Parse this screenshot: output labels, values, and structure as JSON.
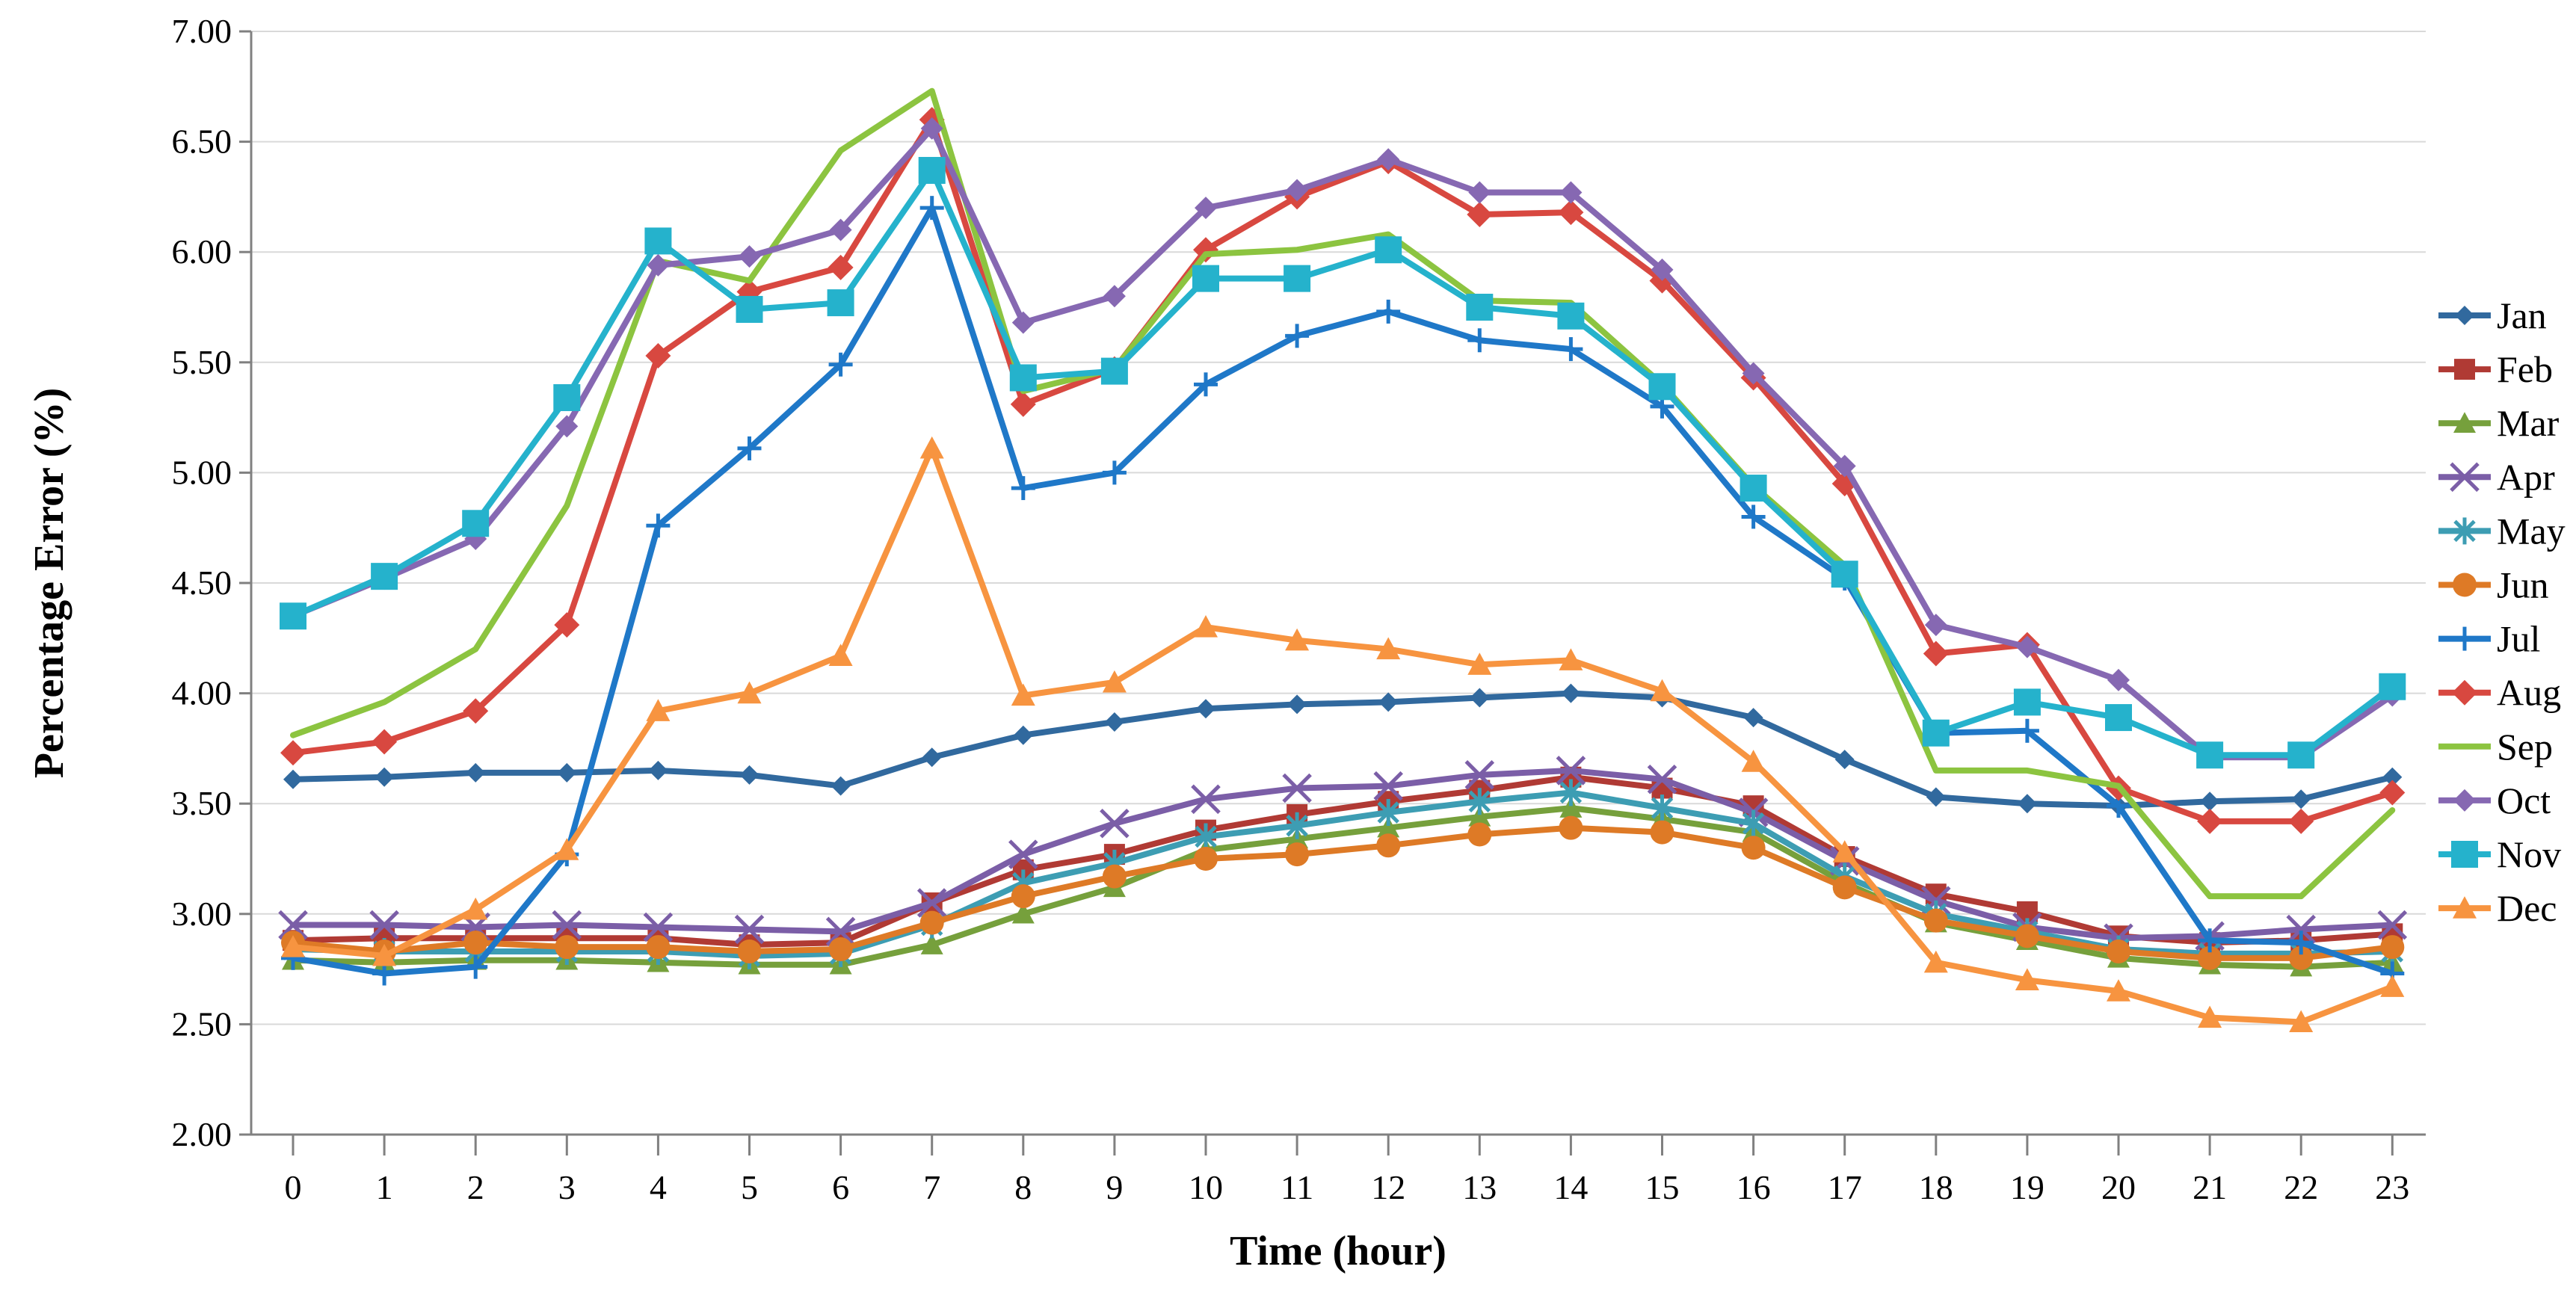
{
  "chart_data": {
    "type": "line",
    "title": "",
    "xlabel": "Time (hour)",
    "ylabel": "Percentage Error (%)",
    "x": [
      0,
      1,
      2,
      3,
      4,
      5,
      6,
      7,
      8,
      9,
      10,
      11,
      12,
      13,
      14,
      15,
      16,
      17,
      18,
      19,
      20,
      21,
      22,
      23
    ],
    "ylim": [
      2.0,
      7.0
    ],
    "ytick_step": 0.5,
    "ytick_decimals": 2,
    "grid": "horizontal",
    "legend_position": "right",
    "axis_color": "#808080",
    "grid_color": "#D9D9D9",
    "series": [
      {
        "name": "Jan",
        "color": "#31699E",
        "marker": "diamond",
        "marker_size": 13,
        "values": [
          3.61,
          3.62,
          3.64,
          3.64,
          3.65,
          3.63,
          3.58,
          3.71,
          3.81,
          3.87,
          3.93,
          3.95,
          3.96,
          3.98,
          4.0,
          3.98,
          3.89,
          3.7,
          3.53,
          3.5,
          3.49,
          3.51,
          3.52,
          3.62
        ]
      },
      {
        "name": "Feb",
        "color": "#B03A34",
        "marker": "square",
        "marker_size": 14,
        "values": [
          2.88,
          2.89,
          2.89,
          2.89,
          2.89,
          2.86,
          2.87,
          3.05,
          3.2,
          3.27,
          3.38,
          3.45,
          3.51,
          3.56,
          3.62,
          3.57,
          3.49,
          3.26,
          3.09,
          3.01,
          2.9,
          2.87,
          2.88,
          2.91
        ]
      },
      {
        "name": "Mar",
        "color": "#76A03C",
        "marker": "triangle",
        "marker_size": 15,
        "values": [
          2.79,
          2.78,
          2.79,
          2.79,
          2.78,
          2.77,
          2.77,
          2.86,
          3.0,
          3.12,
          3.29,
          3.34,
          3.39,
          3.44,
          3.48,
          3.43,
          3.37,
          3.14,
          2.96,
          2.88,
          2.8,
          2.77,
          2.76,
          2.78
        ]
      },
      {
        "name": "Apr",
        "color": "#7B5EA7",
        "marker": "x",
        "marker_size": 18,
        "values": [
          2.95,
          2.95,
          2.94,
          2.95,
          2.94,
          2.93,
          2.92,
          3.05,
          3.27,
          3.41,
          3.52,
          3.57,
          3.58,
          3.63,
          3.65,
          3.61,
          3.46,
          3.24,
          3.06,
          2.94,
          2.89,
          2.9,
          2.93,
          2.95
        ]
      },
      {
        "name": "May",
        "color": "#3D9DB3",
        "marker": "asterisk",
        "marker_size": 18,
        "values": [
          2.84,
          2.83,
          2.83,
          2.83,
          2.83,
          2.81,
          2.82,
          2.95,
          3.14,
          3.23,
          3.35,
          3.4,
          3.46,
          3.51,
          3.55,
          3.48,
          3.41,
          3.17,
          3.0,
          2.92,
          2.84,
          2.82,
          2.82,
          2.83
        ]
      },
      {
        "name": "Jun",
        "color": "#DE7A26",
        "marker": "circle",
        "marker_size": 16,
        "values": [
          2.87,
          2.83,
          2.87,
          2.85,
          2.85,
          2.83,
          2.84,
          2.96,
          3.08,
          3.17,
          3.25,
          3.27,
          3.31,
          3.36,
          3.39,
          3.37,
          3.3,
          3.12,
          2.97,
          2.9,
          2.83,
          2.8,
          2.8,
          2.85
        ]
      },
      {
        "name": "Jul",
        "color": "#1F78C8",
        "marker": "plus",
        "marker_size": 16,
        "values": [
          2.8,
          2.73,
          2.76,
          3.27,
          4.76,
          5.11,
          5.49,
          6.2,
          4.93,
          5.0,
          5.4,
          5.62,
          5.73,
          5.6,
          5.56,
          5.3,
          4.8,
          4.52,
          3.82,
          3.83,
          3.49,
          2.88,
          2.87,
          2.73
        ]
      },
      {
        "name": "Aug",
        "color": "#D84840",
        "marker": "diamond",
        "marker_size": 17,
        "values": [
          3.73,
          3.78,
          3.92,
          4.31,
          5.53,
          5.82,
          5.93,
          6.6,
          5.31,
          5.47,
          6.01,
          6.25,
          6.41,
          6.17,
          6.18,
          5.87,
          5.43,
          4.95,
          4.18,
          4.22,
          3.57,
          3.42,
          3.42,
          3.55
        ]
      },
      {
        "name": "Sep",
        "color": "#8CC440",
        "marker": "none",
        "marker_size": 0,
        "values": [
          3.81,
          3.96,
          4.2,
          4.85,
          5.96,
          5.87,
          6.46,
          6.73,
          5.37,
          5.47,
          5.99,
          6.01,
          6.08,
          5.78,
          5.77,
          5.4,
          4.94,
          4.58,
          3.65,
          3.65,
          3.58,
          3.08,
          3.08,
          3.47
        ]
      },
      {
        "name": "Oct",
        "color": "#8668B2",
        "marker": "diamond",
        "marker_size": 15,
        "values": [
          4.35,
          4.52,
          4.7,
          5.21,
          5.94,
          5.98,
          6.1,
          6.56,
          5.68,
          5.8,
          6.2,
          6.28,
          6.42,
          6.27,
          6.27,
          5.92,
          5.45,
          5.03,
          4.31,
          4.21,
          4.06,
          3.71,
          3.71,
          3.99
        ]
      },
      {
        "name": "Nov",
        "color": "#25B2CC",
        "marker": "square",
        "marker_size": 18,
        "values": [
          4.35,
          4.53,
          4.77,
          5.34,
          6.05,
          5.74,
          5.77,
          6.37,
          5.43,
          5.46,
          5.88,
          5.88,
          6.01,
          5.75,
          5.71,
          5.39,
          4.93,
          4.54,
          3.82,
          3.96,
          3.89,
          3.72,
          3.72,
          4.03
        ]
      },
      {
        "name": "Dec",
        "color": "#F79440",
        "marker": "triangle",
        "marker_size": 16,
        "values": [
          2.85,
          2.81,
          3.02,
          3.29,
          3.92,
          4.0,
          4.17,
          5.11,
          3.99,
          4.05,
          4.3,
          4.24,
          4.2,
          4.13,
          4.15,
          4.01,
          3.69,
          3.28,
          2.78,
          2.7,
          2.65,
          2.53,
          2.51,
          2.67
        ]
      }
    ]
  }
}
